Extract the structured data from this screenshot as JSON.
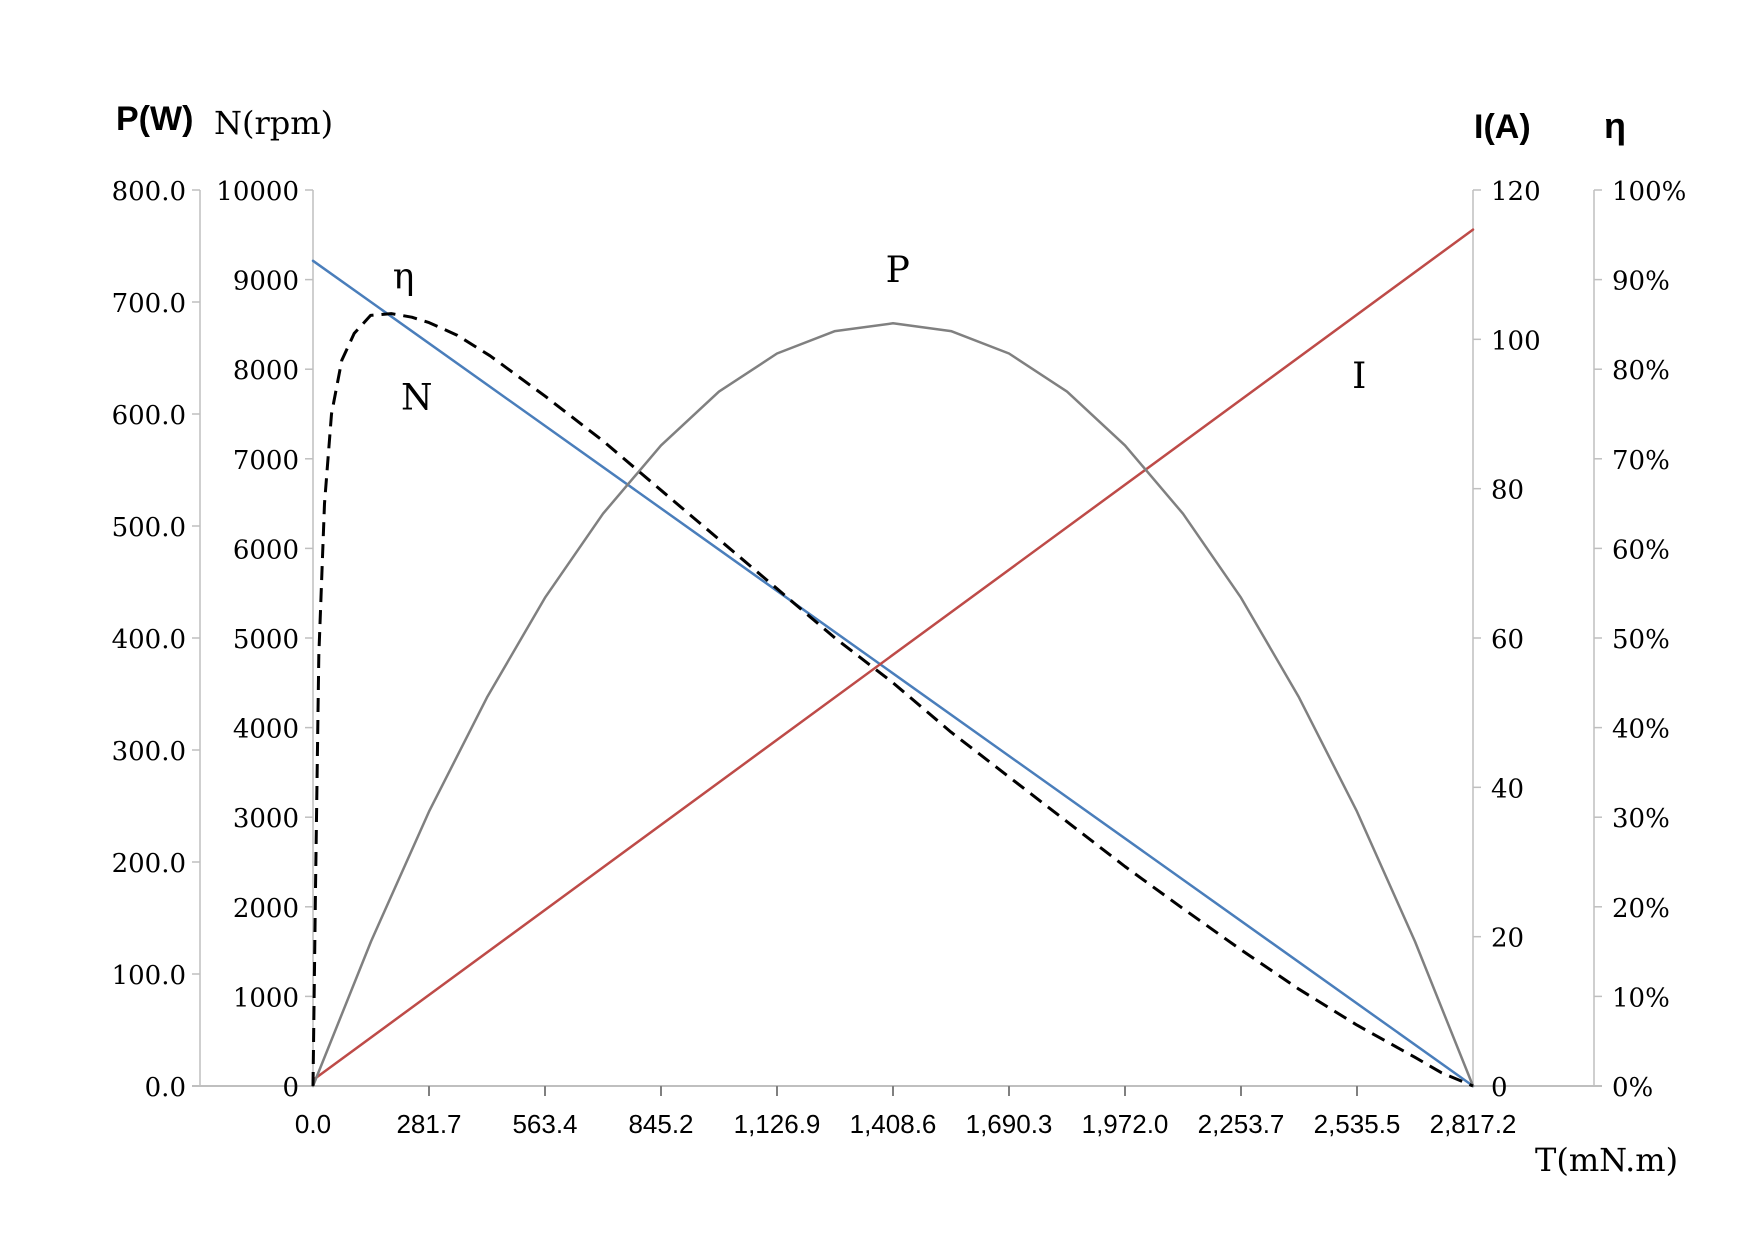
{
  "chart_data": {
    "type": "line",
    "axis_titles": {
      "power": "P(W)",
      "speed": "N(rpm)",
      "current": "I(A)",
      "efficiency": "η",
      "torque": "T(mN.m)"
    },
    "x_ticks": [
      "0.0",
      "281.7",
      "563.4",
      "845.2",
      "1,126.9",
      "1,408.6",
      "1,690.3",
      "1,972.0",
      "2,253.7",
      "2,535.5",
      "2,817.2"
    ],
    "power_ticks": [
      "0.0",
      "100.0",
      "200.0",
      "300.0",
      "400.0",
      "500.0",
      "600.0",
      "700.0",
      "800.0"
    ],
    "speed_ticks": [
      "0",
      "1000",
      "2000",
      "3000",
      "4000",
      "5000",
      "6000",
      "7000",
      "8000",
      "9000",
      "10000"
    ],
    "current_ticks": [
      "0",
      "20",
      "40",
      "60",
      "80",
      "100",
      "120"
    ],
    "efficiency_ticks": [
      "0%",
      "10%",
      "20%",
      "30%",
      "40%",
      "50%",
      "60%",
      "70%",
      "80%",
      "90%",
      "100%"
    ],
    "xlim": [
      0,
      2817.2
    ],
    "power_ylim": [
      0,
      800
    ],
    "speed_ylim": [
      0,
      10000
    ],
    "current_ylim": [
      0,
      120
    ],
    "efficiency_ylim": [
      0,
      1
    ],
    "grid": false,
    "series": [
      {
        "name": "N",
        "axis": "speed",
        "color": "#4a7ebb",
        "dash": "solid",
        "x": [
          0,
          2817.2
        ],
        "values": [
          9210,
          0
        ]
      },
      {
        "name": "I",
        "axis": "current",
        "color": "#be4b48",
        "dash": "solid",
        "x": [
          0,
          2817.2
        ],
        "values": [
          0.8,
          114.7
        ]
      },
      {
        "name": "P",
        "axis": "power",
        "color": "#808080",
        "dash": "solid",
        "x": [
          0,
          140.9,
          281.7,
          422.6,
          563.4,
          704.3,
          845.2,
          986.0,
          1126.9,
          1267.7,
          1408.6,
          1549.5,
          1690.3,
          1831.2,
          1972.0,
          2112.9,
          2253.7,
          2394.6,
          2535.5,
          2676.3,
          2817.2
        ],
        "values": [
          0,
          129,
          245,
          347,
          436,
          511,
          572,
          620,
          654,
          674,
          681,
          674,
          654,
          620,
          572,
          511,
          436,
          347,
          245,
          129,
          0
        ]
      },
      {
        "name": "η",
        "axis": "efficiency",
        "color": "#000000",
        "dash": "dashed",
        "x": [
          0,
          6,
          14,
          28,
          45,
          70,
          100,
          140,
          190,
          240,
          281.7,
          350,
          430,
          563.4,
          704.3,
          845.2,
          986.0,
          1126.9,
          1267.7,
          1408.6,
          1549.5,
          1690.3,
          1831.2,
          1972.0,
          2112.9,
          2253.7,
          2394.6,
          2535.5,
          2676.3,
          2740,
          2817.2
        ],
        "values": [
          0,
          0.22,
          0.48,
          0.65,
          0.75,
          0.81,
          0.84,
          0.86,
          0.862,
          0.858,
          0.852,
          0.838,
          0.815,
          0.77,
          0.72,
          0.665,
          0.61,
          0.555,
          0.5,
          0.45,
          0.395,
          0.345,
          0.295,
          0.245,
          0.198,
          0.152,
          0.108,
          0.068,
          0.032,
          0.015,
          0
        ]
      }
    ],
    "annotations": [
      {
        "text": "η",
        "x": 220,
        "y": 0.89,
        "axis": "efficiency"
      },
      {
        "text": "N",
        "x": 252,
        "y": 7550,
        "axis": "speed"
      },
      {
        "text": "P",
        "x": 1420,
        "y": 718,
        "axis": "power"
      },
      {
        "text": "I",
        "x": 2541,
        "y": 93.5,
        "axis": "current"
      }
    ]
  }
}
